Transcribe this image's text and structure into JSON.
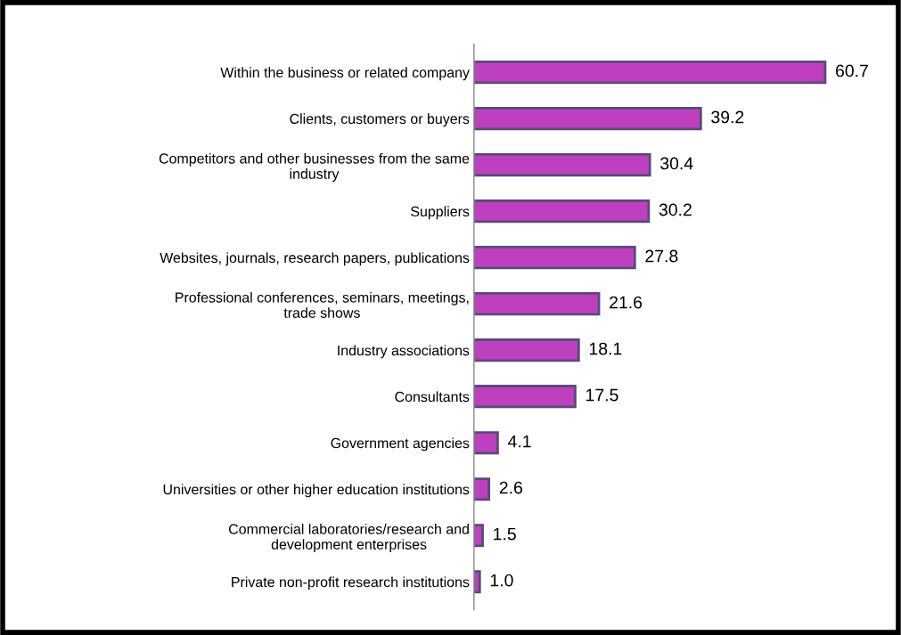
{
  "chart_data": {
    "type": "bar",
    "orientation": "horizontal",
    "categories": [
      "Within the business or related company",
      "Clients, customers or buyers",
      "Competitors and other businesses from the same\nindustry",
      "Suppliers",
      "Websites, journals, research papers, publications",
      "Professional conferences, seminars, meetings,\ntrade shows",
      "Industry associations",
      "Consultants",
      "Government agencies",
      "Universities or other higher education institutions",
      "Commercial laboratories/research and\ndevelopment enterprises",
      "Private non-profit research institutions"
    ],
    "values": [
      60.7,
      39.2,
      30.4,
      30.2,
      27.8,
      21.6,
      18.1,
      17.5,
      4.1,
      2.6,
      1.5,
      1.0
    ],
    "value_labels": [
      "60.7",
      "39.2",
      "30.4",
      "30.2",
      "27.8",
      "21.6",
      "18.1",
      "17.5",
      "4.1",
      "2.6",
      "1.5",
      "1.0"
    ],
    "color": "#bf40bf",
    "tick_labels": "y",
    "grid": false,
    "legend": false
  }
}
